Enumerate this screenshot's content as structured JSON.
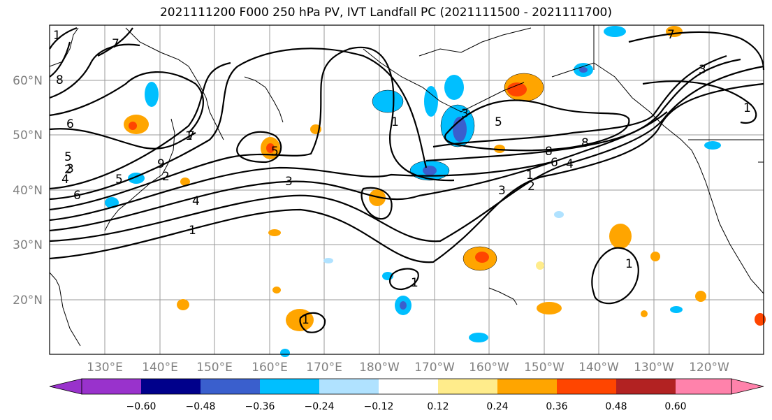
{
  "title": "2021111200 F000 250 hPa PV, IVT Landfall PC (2021111500 - 2021111700)",
  "map": {
    "lat_labels": [
      "60°N",
      "50°N",
      "40°N",
      "30°N",
      "20°N"
    ],
    "lon_labels": [
      "130°E",
      "140°E",
      "150°E",
      "160°E",
      "170°E",
      "180°W",
      "170°W",
      "160°W",
      "150°W",
      "140°W",
      "130°W",
      "120°W"
    ],
    "contour_labels": [
      "7",
      "8",
      "6",
      "5",
      "2",
      "3",
      "4",
      "6",
      "1",
      "9",
      "2",
      "5",
      "3",
      "4",
      "1",
      "5",
      "7",
      "3",
      "2",
      "1",
      "8",
      "5",
      "6",
      "8",
      "4",
      "3",
      "7",
      "1",
      "1",
      "1",
      "1",
      "1",
      "1",
      "3"
    ]
  },
  "colorbar": {
    "tick_labels": [
      "−0.60",
      "−0.48",
      "−0.36",
      "−0.24",
      "−0.12",
      "0.12",
      "0.24",
      "0.36",
      "0.48",
      "0.60"
    ],
    "colors": [
      "#9932cc",
      "#00008b",
      "#3a5fcd",
      "#00bfff",
      "#b0e2ff",
      "#ffffff",
      "#ffec8b",
      "#ffa500",
      "#ff4500",
      "#b22222",
      "#ff82ab"
    ]
  }
}
